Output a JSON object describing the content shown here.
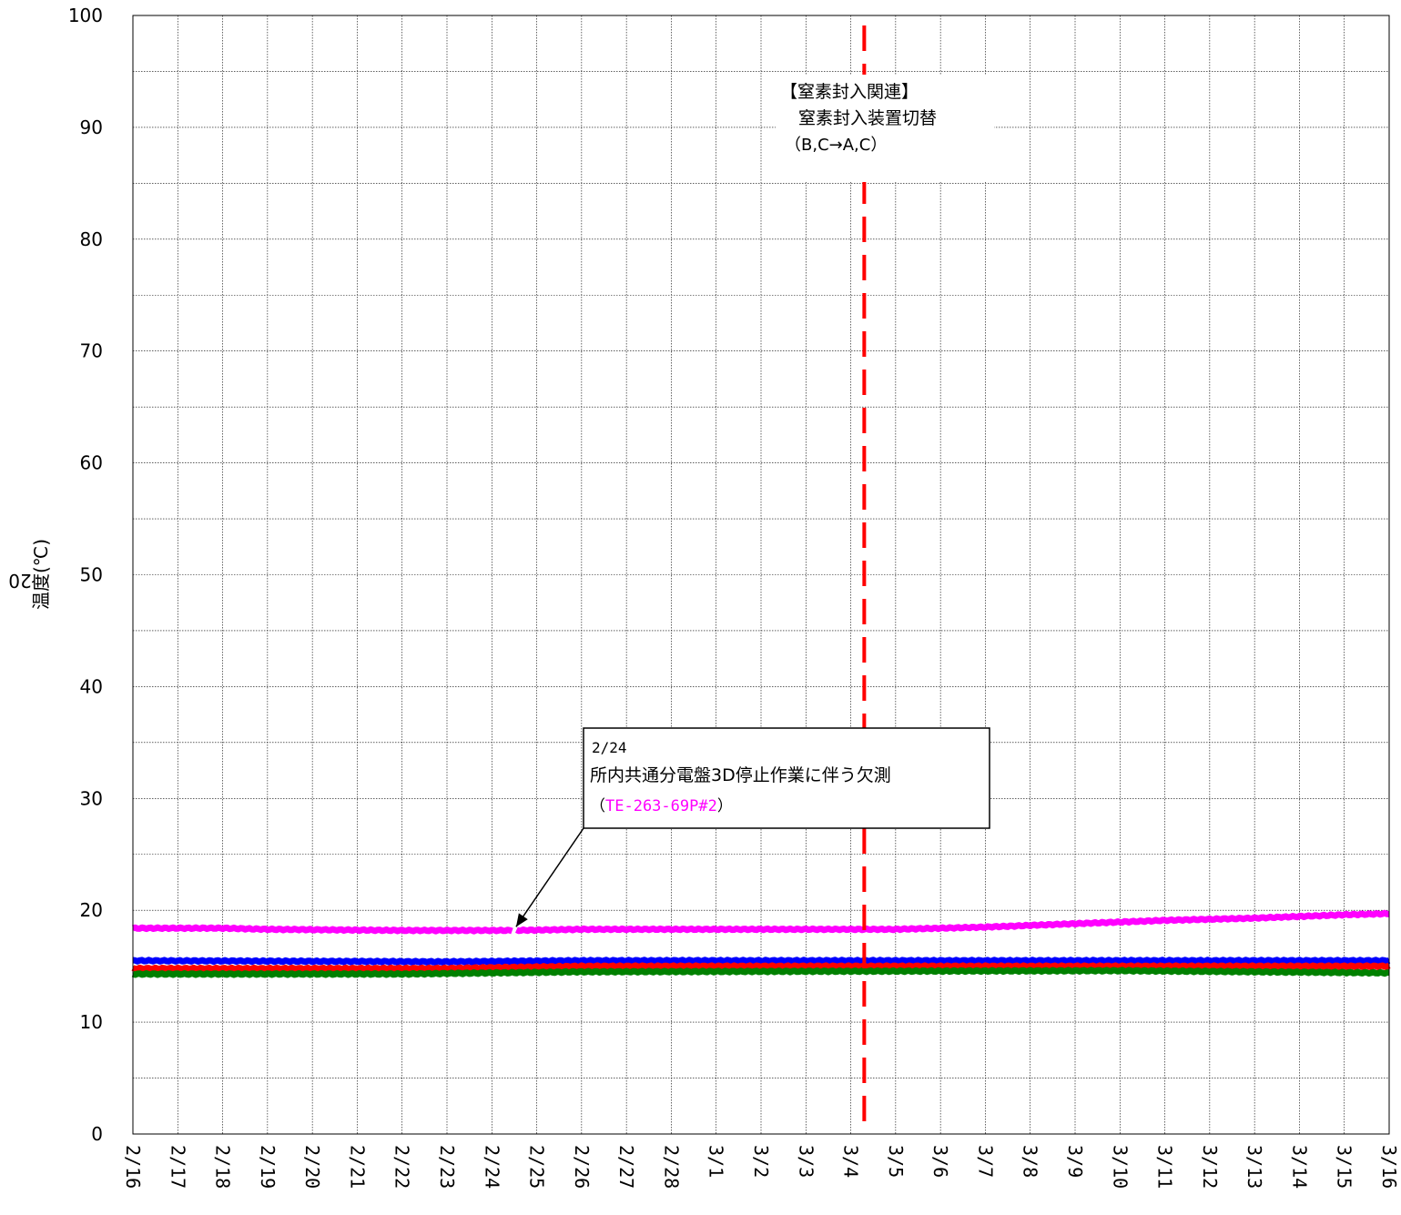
{
  "chart_data": {
    "type": "line",
    "title": "",
    "ylabel": "温度(℃)",
    "ylabel_prefix": "20",
    "xlabel": "",
    "ylim": [
      0,
      100
    ],
    "y_ticks": [
      0,
      10,
      20,
      30,
      40,
      50,
      60,
      70,
      80,
      90,
      100
    ],
    "y_minor_step": 5,
    "x_ticks": [
      "2/16",
      "2/17",
      "2/18",
      "2/19",
      "2/20",
      "2/21",
      "2/22",
      "2/23",
      "2/24",
      "2/25",
      "2/26",
      "2/27",
      "2/28",
      "3/1",
      "3/2",
      "3/3",
      "3/4",
      "3/5",
      "3/6",
      "3/7",
      "3/8",
      "3/9",
      "3/10",
      "3/11",
      "3/12",
      "3/13",
      "3/14",
      "3/15",
      "3/16"
    ],
    "grid": true,
    "legend": "none",
    "series": [
      {
        "color": "#ff00ff",
        "gap_at": 8.5,
        "points": [
          [
            0,
            18.4
          ],
          [
            2,
            18.4
          ],
          [
            3,
            18.3
          ],
          [
            6,
            18.2
          ],
          [
            8.5,
            18.2
          ],
          [
            10,
            18.3
          ],
          [
            17,
            18.3
          ],
          [
            19,
            18.5
          ],
          [
            21,
            18.8
          ],
          [
            23,
            19.1
          ],
          [
            25,
            19.3
          ],
          [
            27,
            19.6
          ],
          [
            28,
            19.7
          ]
        ]
      },
      {
        "color": "#0000ff",
        "points": [
          [
            0,
            15.5
          ],
          [
            7,
            15.4
          ],
          [
            10,
            15.5
          ],
          [
            28,
            15.5
          ]
        ]
      },
      {
        "color": "#ff0000",
        "points": [
          [
            0,
            14.8
          ],
          [
            7,
            14.8
          ],
          [
            10,
            15.0
          ],
          [
            28,
            15.0
          ]
        ]
      },
      {
        "color": "#008000",
        "points": [
          [
            0,
            14.3
          ],
          [
            6,
            14.3
          ],
          [
            10,
            14.5
          ],
          [
            22,
            14.6
          ],
          [
            28,
            14.4
          ]
        ]
      }
    ],
    "vline": {
      "x": 16.3,
      "color": "#ff0000",
      "style": "dashed"
    },
    "annotations": [
      {
        "id": "nitrogen",
        "lines": [
          "【窒素封入関連】",
          "窒素封入装置切替",
          "（B,C→A,C）"
        ]
      },
      {
        "id": "missing",
        "lines": [
          "2/24",
          "所内共通分電盤3D停止作業に伴う欠測"
        ],
        "line3_parts": [
          "（",
          "TE-263-69P#2",
          "）"
        ],
        "highlight_color": "#ff00ff",
        "arrow_target": [
          8.5,
          18.2
        ]
      }
    ]
  }
}
